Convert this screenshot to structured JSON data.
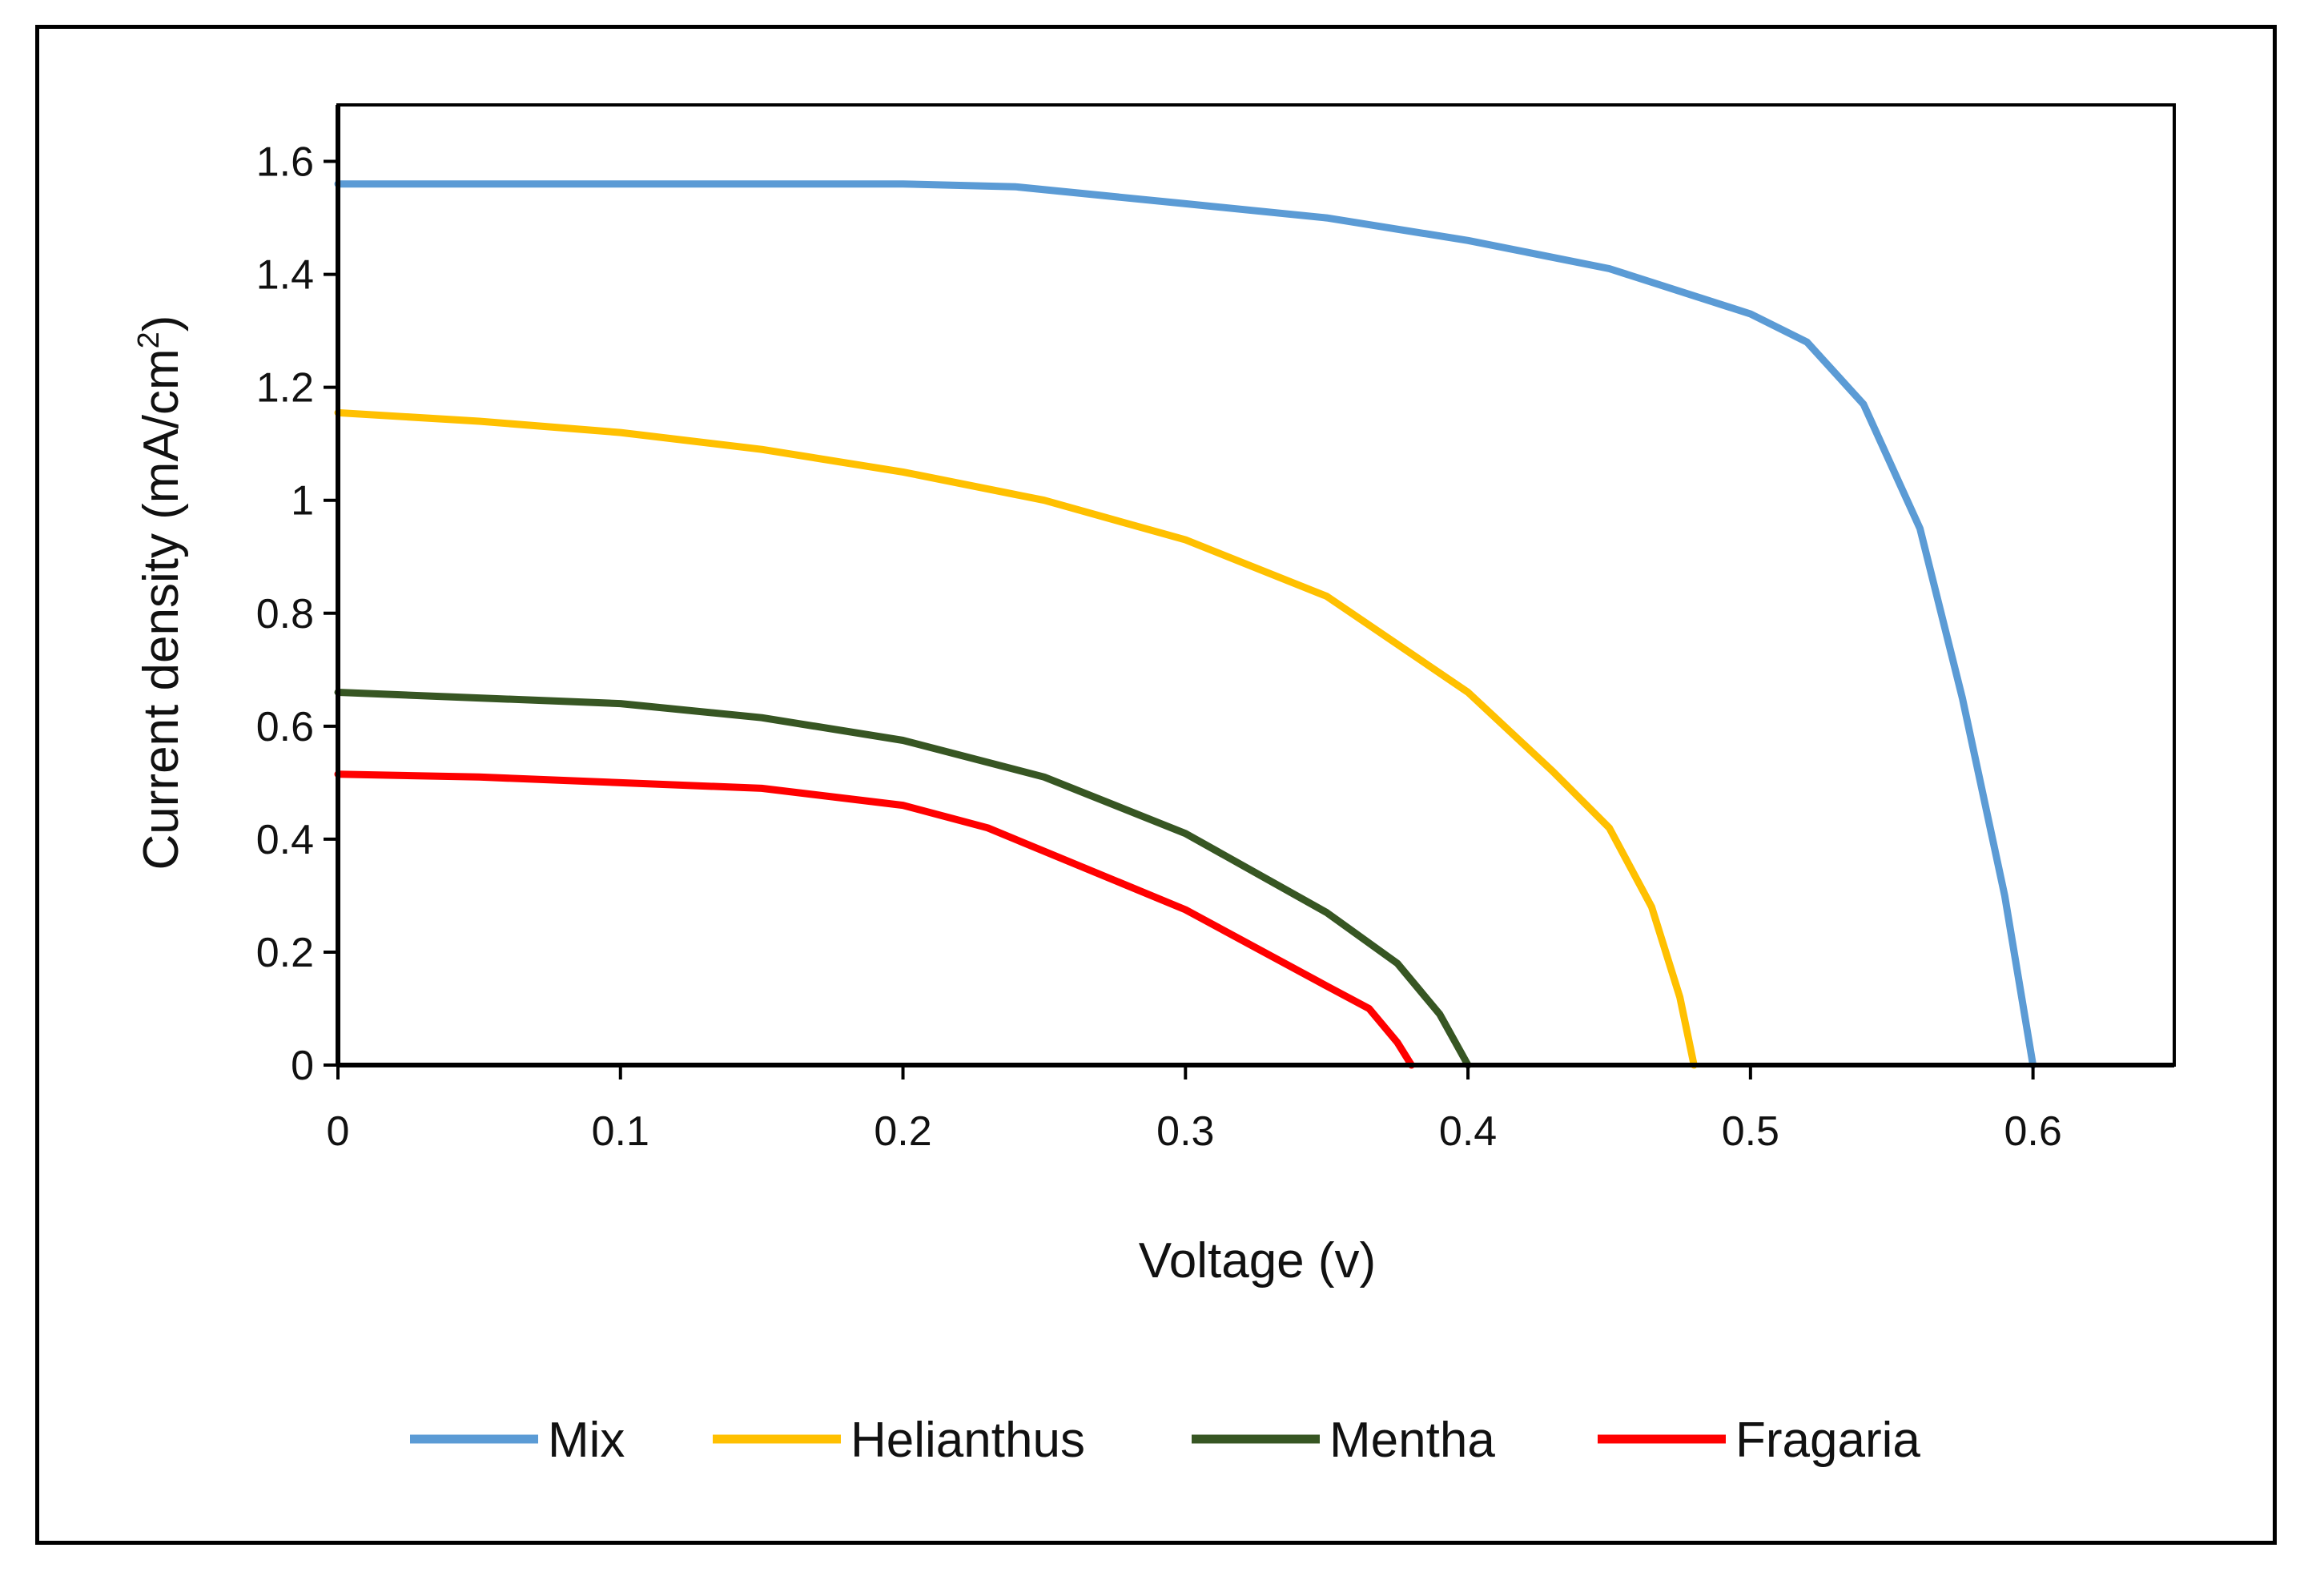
{
  "chart_data": {
    "type": "line",
    "title": "",
    "xlabel": "Voltage (v)",
    "ylabel": "Current density (mA/cm2)",
    "ylabel_main": "Current density (mA/cm",
    "ylabel_sup": "2",
    "ylabel_close": ")",
    "xlim": [
      0,
      0.65
    ],
    "ylim": [
      0,
      1.7
    ],
    "xticks": [
      0,
      0.1,
      0.2,
      0.3,
      0.4,
      0.5,
      0.6
    ],
    "xtick_labels": [
      "0",
      "0.1",
      "0.2",
      "0.3",
      "0.4",
      "0.5",
      "0.6"
    ],
    "yticks": [
      0,
      0.2,
      0.4,
      0.6,
      0.8,
      1.0,
      1.2,
      1.4,
      1.6
    ],
    "ytick_labels": [
      "0",
      "0.2",
      "0.4",
      "0.6",
      "0.8",
      "1",
      "1.2",
      "1.4",
      "1.6"
    ],
    "grid": false,
    "legend_position": "bottom",
    "series": [
      {
        "name": "Mix",
        "color": "#5b9bd5",
        "x": [
          0,
          0.05,
          0.1,
          0.15,
          0.2,
          0.24,
          0.3,
          0.35,
          0.4,
          0.45,
          0.5,
          0.52,
          0.54,
          0.56,
          0.575,
          0.59,
          0.6
        ],
        "y": [
          1.56,
          1.56,
          1.56,
          1.56,
          1.56,
          1.555,
          1.525,
          1.5,
          1.46,
          1.41,
          1.33,
          1.28,
          1.17,
          0.95,
          0.65,
          0.3,
          0.0
        ]
      },
      {
        "name": "Helianthus",
        "color": "#ffc000",
        "x": [
          0,
          0.05,
          0.1,
          0.15,
          0.2,
          0.25,
          0.3,
          0.35,
          0.4,
          0.43,
          0.45,
          0.465,
          0.475,
          0.48
        ],
        "y": [
          1.155,
          1.14,
          1.12,
          1.09,
          1.05,
          1.0,
          0.93,
          0.83,
          0.66,
          0.52,
          0.42,
          0.28,
          0.12,
          0.0
        ]
      },
      {
        "name": "Mentha",
        "color": "#375623",
        "x": [
          0,
          0.05,
          0.1,
          0.15,
          0.2,
          0.25,
          0.3,
          0.35,
          0.375,
          0.39,
          0.4
        ],
        "y": [
          0.66,
          0.65,
          0.64,
          0.615,
          0.575,
          0.51,
          0.41,
          0.27,
          0.18,
          0.09,
          0.0
        ]
      },
      {
        "name": "Fragaria",
        "color": "#ff0000",
        "x": [
          0,
          0.05,
          0.1,
          0.15,
          0.2,
          0.23,
          0.3,
          0.35,
          0.365,
          0.375,
          0.38
        ],
        "y": [
          0.515,
          0.51,
          0.5,
          0.49,
          0.46,
          0.42,
          0.275,
          0.14,
          0.1,
          0.04,
          0.0
        ]
      }
    ]
  }
}
